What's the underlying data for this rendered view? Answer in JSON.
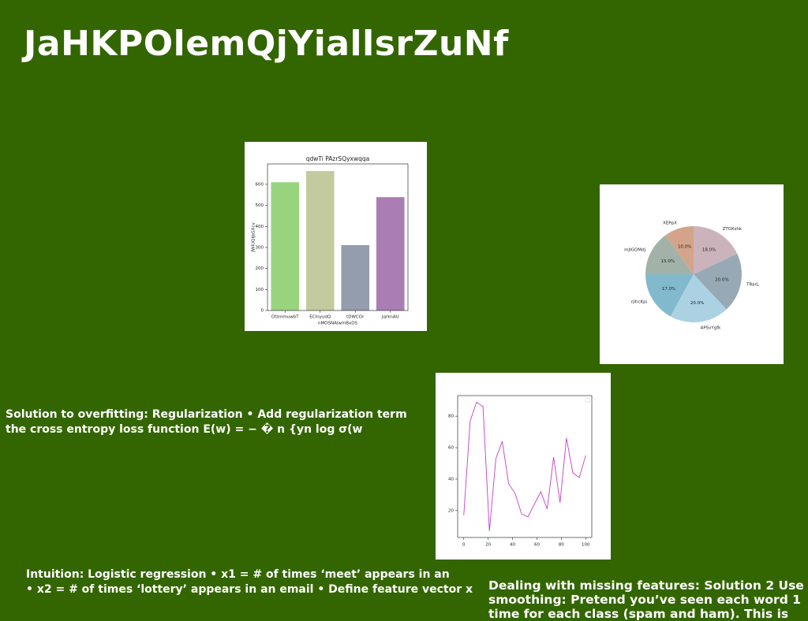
{
  "title": "JaHKPOlemQjYiallsrZuNf",
  "chart_data": [
    {
      "type": "bar",
      "title": "qdwTi PAzrSQyxwqqa",
      "xlabel": "nMOSNAlwmBxDS",
      "ylabel": "JWIUQIJaSXcv",
      "categories": [
        "OfzmmuwbT",
        "ECInyudQ",
        "tDWCOr",
        "JqrknAU"
      ],
      "values": [
        610,
        663,
        311,
        539
      ],
      "colors": [
        "#98d47e",
        "#c3cb9e",
        "#949dad",
        "#ab7db5"
      ],
      "ylim": [
        0,
        697
      ],
      "yticks": [
        0,
        100,
        200,
        300,
        400,
        500,
        600
      ]
    },
    {
      "type": "pie",
      "categories": [
        "XEPpX",
        "mJIGOMdj",
        "rjihcKpi",
        "APSvYgfk",
        "TRarL",
        "ZTOXshk"
      ],
      "values": [
        10,
        15,
        17,
        20,
        20,
        18
      ],
      "value_labels": [
        "10.0%",
        "15.0%",
        "17.0%",
        "20.0%",
        "20.0%",
        "18.0%"
      ],
      "colors": [
        "#d4a48a",
        "#a3b2a9",
        "#82b9cc",
        "#abd1e2",
        "#97a9b5",
        "#cab3bb"
      ]
    },
    {
      "type": "line",
      "x": [
        0,
        5.26,
        10.53,
        15.79,
        21.05,
        26.32,
        31.58,
        36.84,
        42.11,
        47.37,
        52.63,
        57.89,
        63.16,
        68.42,
        73.68,
        78.95,
        84.21,
        89.47,
        94.74,
        100
      ],
      "series": [
        {
          "color": "#c43fc4",
          "values": [
            17,
            77,
            89,
            86,
            7,
            53,
            64,
            37,
            31,
            18,
            16,
            24,
            32,
            21,
            54,
            25,
            66,
            44,
            41,
            55
          ]
        }
      ],
      "xlim": [
        -5,
        105
      ],
      "xticks": [
        0,
        20,
        40,
        60,
        80,
        100
      ],
      "ylim": [
        2.9,
        93.1
      ],
      "yticks": [
        20,
        40,
        60,
        80
      ]
    }
  ],
  "text_blocks": [
    [
      "Solution to overfitting: Regularization • Add regularization term",
      "the cross entropy loss function E(w) = − � n {yn log σ(w"
    ],
    [
      "Intuition: Logistic regression • x1 = # of times ‘meet’ appears in an",
      "• x2 = # of times ‘lottery’ appears in an email • Define feature vector x"
    ],
    [
      "Dealing with missing features: Solution 2 Use",
      "smoothing: Pretend you’ve seen each word 1",
      "time for each class (spam and ham). This is"
    ]
  ]
}
